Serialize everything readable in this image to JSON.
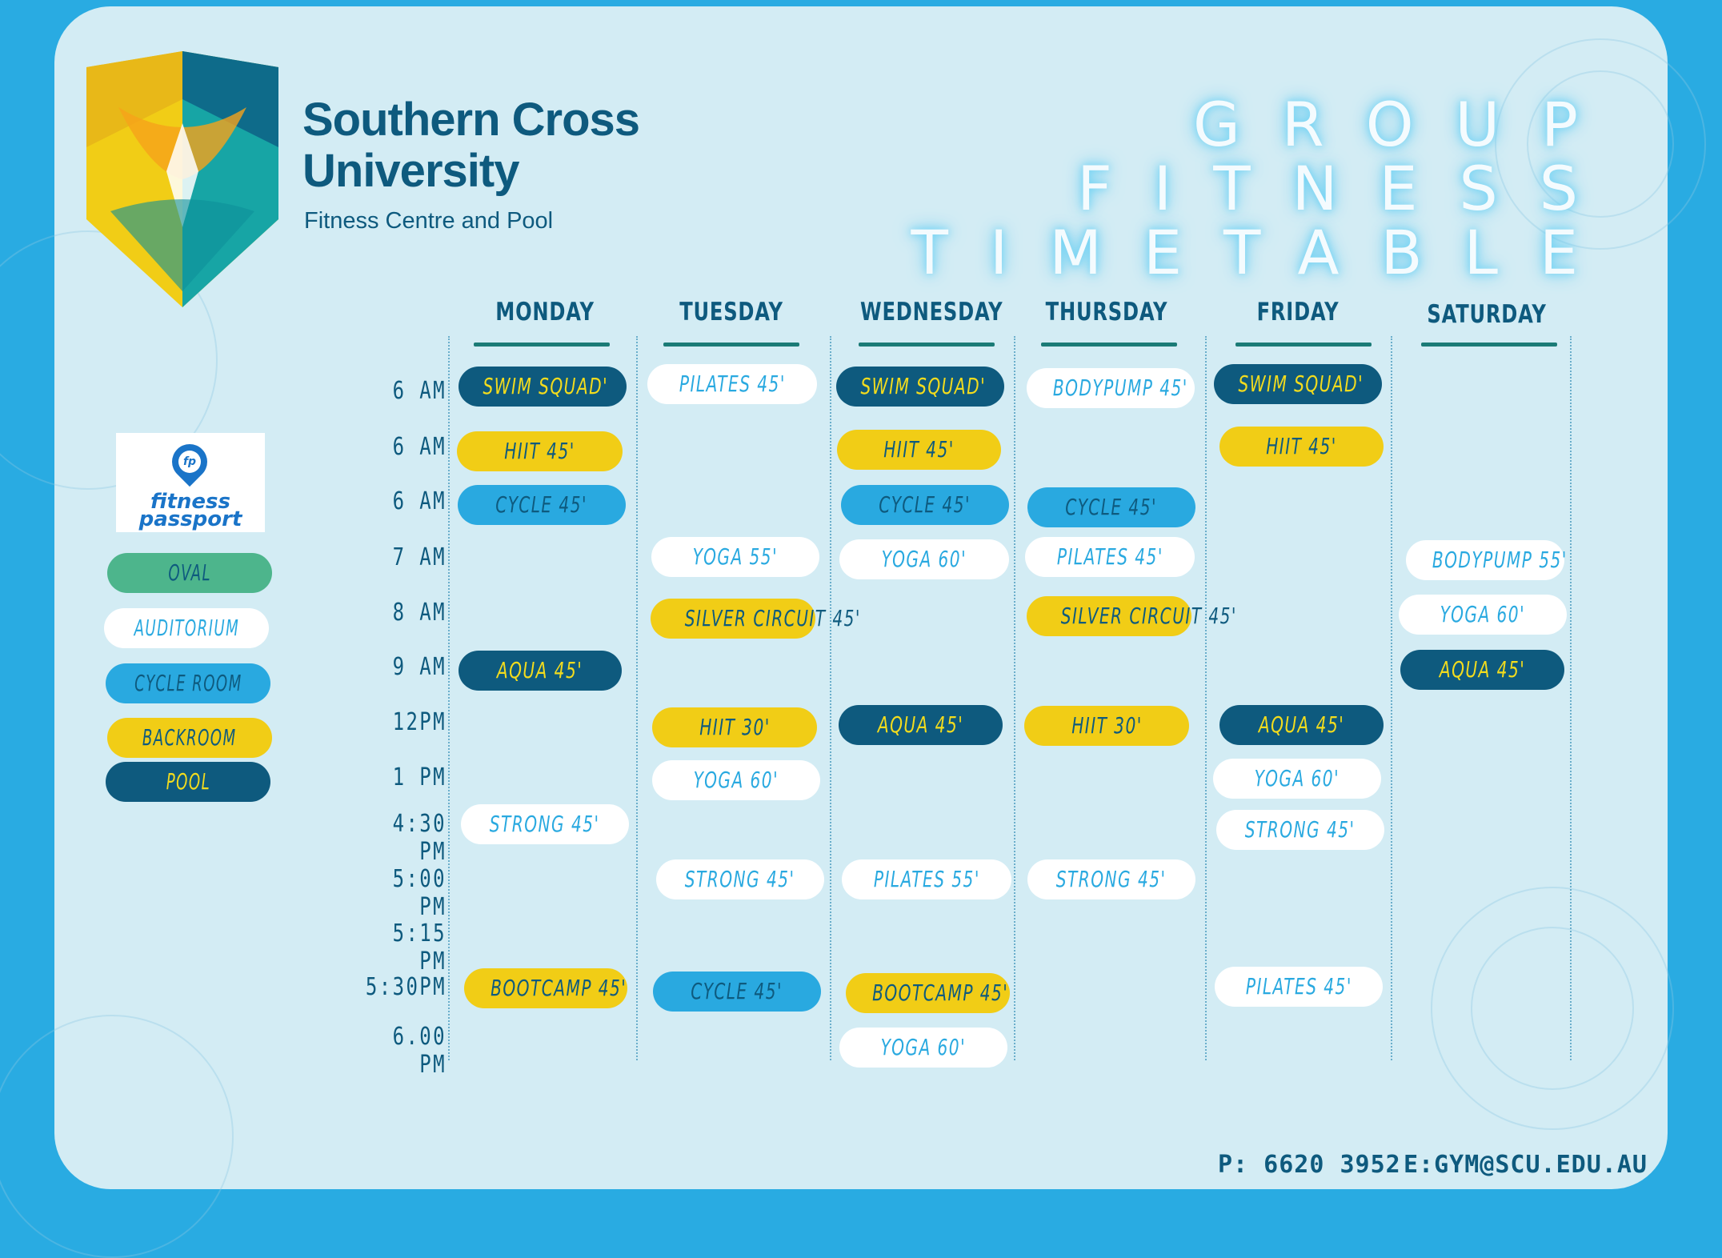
{
  "brand": {
    "name_line1": "Southern Cross",
    "name_line2": "University",
    "subtitle": "Fitness Centre and Pool"
  },
  "title": {
    "line1": "GROUP",
    "line2": "FITNESS",
    "line3": "TIMETABLE"
  },
  "fitness_passport": {
    "line1": "fitness",
    "line2": "passport",
    "pin_text": "fp"
  },
  "legend": [
    {
      "label": "OVAL",
      "color": "#4db58c"
    },
    {
      "label": "AUDITORIUM",
      "color": "#ffffff"
    },
    {
      "label": "CYCLE ROOM",
      "color": "#29a9e0"
    },
    {
      "label": "BACKROOM",
      "color": "#f1cd16"
    },
    {
      "label": "POOL",
      "color": "#0e5a7e"
    }
  ],
  "days": [
    "MONDAY",
    "TUESDAY",
    "WEDNESDAY",
    "THURSDAY",
    "FRIDAY",
    "SATURDAY"
  ],
  "times": [
    "6 AM",
    "6 AM",
    "6 AM",
    "7 AM",
    "8 AM",
    "9 AM",
    "12PM",
    "1 PM",
    "4:30 PM",
    "5:00 PM",
    "5:15 PM",
    "5:30PM",
    "6.00 PM"
  ],
  "classes": {
    "mon": [
      "SWIM SQUAD'",
      "HIIT 45'",
      "CYCLE 45'",
      "AQUA 45'",
      "STRONG 45'",
      "BOOTCAMP 45'"
    ],
    "tue": [
      "PILATES 45'",
      "YOGA 55'",
      "SILVER CIRCUIT 45'",
      "HIIT 30'",
      "YOGA 60'",
      "STRONG 45'",
      "CYCLE 45'"
    ],
    "wed": [
      "SWIM SQUAD'",
      "HIIT 45'",
      "CYCLE 45'",
      "YOGA 60'",
      "AQUA 45'",
      "PILATES 55'",
      "BOOTCAMP 45'",
      "YOGA 60'"
    ],
    "thu": [
      "BODYPUMP 45'",
      "CYCLE 45'",
      "PILATES 45'",
      "SILVER CIRCUIT 45'",
      "HIIT 30'",
      "STRONG 45'"
    ],
    "fri": [
      "SWIM SQUAD'",
      "HIIT 45'",
      "AQUA 45'",
      "YOGA 60'",
      "STRONG 45'",
      "PILATES 45'"
    ],
    "sat": [
      "BODYPUMP 55'",
      "YOGA 60'",
      "AQUA 45'"
    ]
  },
  "contact": {
    "phone": "P: 6620 3952",
    "email": "E:GYM@SCU.EDU.AU"
  }
}
